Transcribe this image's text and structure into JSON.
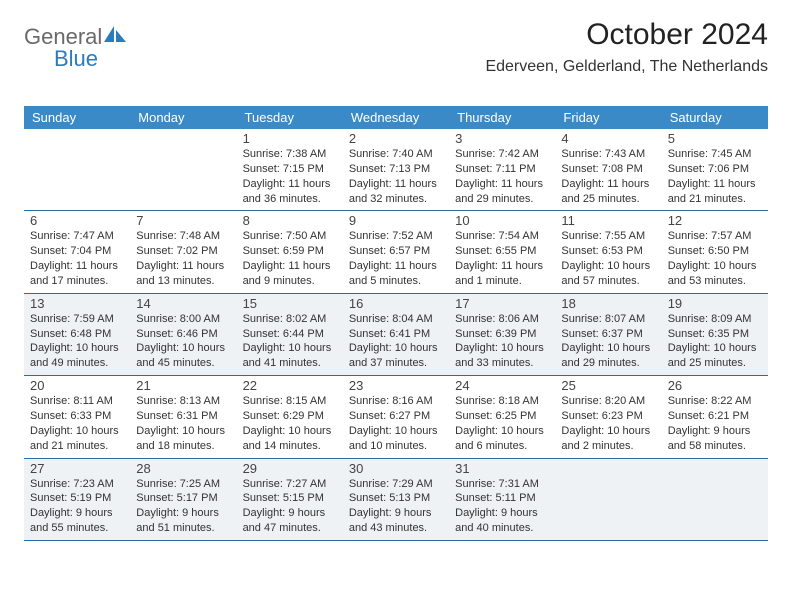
{
  "logo": {
    "general": "General",
    "blue": "Blue",
    "brand_color": "#2b7bbf",
    "text_color": "#6a6a6a"
  },
  "header": {
    "month": "October 2024",
    "location": "Ederveen, Gelderland, The Netherlands"
  },
  "colors": {
    "header_bg": "#3a8ac8",
    "header_text": "#ffffff",
    "row_border": "#2b6ca3",
    "shaded_bg": "#eef2f4",
    "cell_bg": "#ffffff",
    "body_text": "#333333",
    "daynum_text": "#444444"
  },
  "weekdays": [
    "Sunday",
    "Monday",
    "Tuesday",
    "Wednesday",
    "Thursday",
    "Friday",
    "Saturday"
  ],
  "weeks": [
    [
      {
        "blank": true
      },
      {
        "blank": true
      },
      {
        "num": "1",
        "sunrise": "Sunrise: 7:38 AM",
        "sunset": "Sunset: 7:15 PM",
        "daylight1": "Daylight: 11 hours",
        "daylight2": "and 36 minutes."
      },
      {
        "num": "2",
        "sunrise": "Sunrise: 7:40 AM",
        "sunset": "Sunset: 7:13 PM",
        "daylight1": "Daylight: 11 hours",
        "daylight2": "and 32 minutes."
      },
      {
        "num": "3",
        "sunrise": "Sunrise: 7:42 AM",
        "sunset": "Sunset: 7:11 PM",
        "daylight1": "Daylight: 11 hours",
        "daylight2": "and 29 minutes."
      },
      {
        "num": "4",
        "sunrise": "Sunrise: 7:43 AM",
        "sunset": "Sunset: 7:08 PM",
        "daylight1": "Daylight: 11 hours",
        "daylight2": "and 25 minutes."
      },
      {
        "num": "5",
        "sunrise": "Sunrise: 7:45 AM",
        "sunset": "Sunset: 7:06 PM",
        "daylight1": "Daylight: 11 hours",
        "daylight2": "and 21 minutes."
      }
    ],
    [
      {
        "num": "6",
        "sunrise": "Sunrise: 7:47 AM",
        "sunset": "Sunset: 7:04 PM",
        "daylight1": "Daylight: 11 hours",
        "daylight2": "and 17 minutes."
      },
      {
        "num": "7",
        "sunrise": "Sunrise: 7:48 AM",
        "sunset": "Sunset: 7:02 PM",
        "daylight1": "Daylight: 11 hours",
        "daylight2": "and 13 minutes."
      },
      {
        "num": "8",
        "sunrise": "Sunrise: 7:50 AM",
        "sunset": "Sunset: 6:59 PM",
        "daylight1": "Daylight: 11 hours",
        "daylight2": "and 9 minutes."
      },
      {
        "num": "9",
        "sunrise": "Sunrise: 7:52 AM",
        "sunset": "Sunset: 6:57 PM",
        "daylight1": "Daylight: 11 hours",
        "daylight2": "and 5 minutes."
      },
      {
        "num": "10",
        "sunrise": "Sunrise: 7:54 AM",
        "sunset": "Sunset: 6:55 PM",
        "daylight1": "Daylight: 11 hours",
        "daylight2": "and 1 minute."
      },
      {
        "num": "11",
        "sunrise": "Sunrise: 7:55 AM",
        "sunset": "Sunset: 6:53 PM",
        "daylight1": "Daylight: 10 hours",
        "daylight2": "and 57 minutes."
      },
      {
        "num": "12",
        "sunrise": "Sunrise: 7:57 AM",
        "sunset": "Sunset: 6:50 PM",
        "daylight1": "Daylight: 10 hours",
        "daylight2": "and 53 minutes."
      }
    ],
    [
      {
        "num": "13",
        "sunrise": "Sunrise: 7:59 AM",
        "sunset": "Sunset: 6:48 PM",
        "daylight1": "Daylight: 10 hours",
        "daylight2": "and 49 minutes."
      },
      {
        "num": "14",
        "sunrise": "Sunrise: 8:00 AM",
        "sunset": "Sunset: 6:46 PM",
        "daylight1": "Daylight: 10 hours",
        "daylight2": "and 45 minutes."
      },
      {
        "num": "15",
        "sunrise": "Sunrise: 8:02 AM",
        "sunset": "Sunset: 6:44 PM",
        "daylight1": "Daylight: 10 hours",
        "daylight2": "and 41 minutes."
      },
      {
        "num": "16",
        "sunrise": "Sunrise: 8:04 AM",
        "sunset": "Sunset: 6:41 PM",
        "daylight1": "Daylight: 10 hours",
        "daylight2": "and 37 minutes."
      },
      {
        "num": "17",
        "sunrise": "Sunrise: 8:06 AM",
        "sunset": "Sunset: 6:39 PM",
        "daylight1": "Daylight: 10 hours",
        "daylight2": "and 33 minutes."
      },
      {
        "num": "18",
        "sunrise": "Sunrise: 8:07 AM",
        "sunset": "Sunset: 6:37 PM",
        "daylight1": "Daylight: 10 hours",
        "daylight2": "and 29 minutes."
      },
      {
        "num": "19",
        "sunrise": "Sunrise: 8:09 AM",
        "sunset": "Sunset: 6:35 PM",
        "daylight1": "Daylight: 10 hours",
        "daylight2": "and 25 minutes."
      }
    ],
    [
      {
        "num": "20",
        "sunrise": "Sunrise: 8:11 AM",
        "sunset": "Sunset: 6:33 PM",
        "daylight1": "Daylight: 10 hours",
        "daylight2": "and 21 minutes."
      },
      {
        "num": "21",
        "sunrise": "Sunrise: 8:13 AM",
        "sunset": "Sunset: 6:31 PM",
        "daylight1": "Daylight: 10 hours",
        "daylight2": "and 18 minutes."
      },
      {
        "num": "22",
        "sunrise": "Sunrise: 8:15 AM",
        "sunset": "Sunset: 6:29 PM",
        "daylight1": "Daylight: 10 hours",
        "daylight2": "and 14 minutes."
      },
      {
        "num": "23",
        "sunrise": "Sunrise: 8:16 AM",
        "sunset": "Sunset: 6:27 PM",
        "daylight1": "Daylight: 10 hours",
        "daylight2": "and 10 minutes."
      },
      {
        "num": "24",
        "sunrise": "Sunrise: 8:18 AM",
        "sunset": "Sunset: 6:25 PM",
        "daylight1": "Daylight: 10 hours",
        "daylight2": "and 6 minutes."
      },
      {
        "num": "25",
        "sunrise": "Sunrise: 8:20 AM",
        "sunset": "Sunset: 6:23 PM",
        "daylight1": "Daylight: 10 hours",
        "daylight2": "and 2 minutes."
      },
      {
        "num": "26",
        "sunrise": "Sunrise: 8:22 AM",
        "sunset": "Sunset: 6:21 PM",
        "daylight1": "Daylight: 9 hours",
        "daylight2": "and 58 minutes."
      }
    ],
    [
      {
        "num": "27",
        "sunrise": "Sunrise: 7:23 AM",
        "sunset": "Sunset: 5:19 PM",
        "daylight1": "Daylight: 9 hours",
        "daylight2": "and 55 minutes."
      },
      {
        "num": "28",
        "sunrise": "Sunrise: 7:25 AM",
        "sunset": "Sunset: 5:17 PM",
        "daylight1": "Daylight: 9 hours",
        "daylight2": "and 51 minutes."
      },
      {
        "num": "29",
        "sunrise": "Sunrise: 7:27 AM",
        "sunset": "Sunset: 5:15 PM",
        "daylight1": "Daylight: 9 hours",
        "daylight2": "and 47 minutes."
      },
      {
        "num": "30",
        "sunrise": "Sunrise: 7:29 AM",
        "sunset": "Sunset: 5:13 PM",
        "daylight1": "Daylight: 9 hours",
        "daylight2": "and 43 minutes."
      },
      {
        "num": "31",
        "sunrise": "Sunrise: 7:31 AM",
        "sunset": "Sunset: 5:11 PM",
        "daylight1": "Daylight: 9 hours",
        "daylight2": "and 40 minutes."
      },
      {
        "blank": true
      },
      {
        "blank": true
      }
    ]
  ],
  "shaded_rows": [
    2,
    4
  ]
}
